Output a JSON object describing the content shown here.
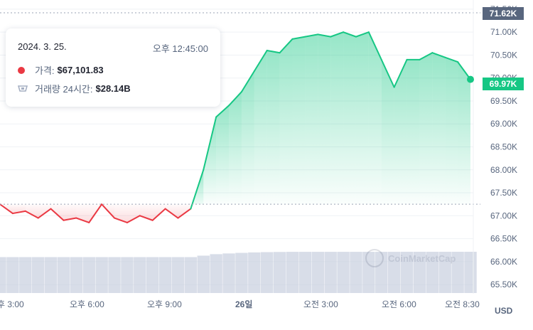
{
  "tooltip": {
    "date": "2024. 3. 25.",
    "time": "오후 12:45:00",
    "price_label": "가격:",
    "price_value": "$67,101.83",
    "volume_label": "거래량 24시간:",
    "volume_value": "$28.14B",
    "colors": {
      "price_dot": "#ea3943"
    },
    "icons": {
      "price": "red-dot-icon",
      "volume": "volume-icon"
    }
  },
  "watermark": {
    "text": "CoinMarketCap",
    "icon": "coinmarketcap-logo-icon"
  },
  "badges": {
    "high": {
      "label": "71.62K",
      "color": "#58667e"
    },
    "current": {
      "label": "69.97K",
      "color": "#16c784"
    }
  },
  "currency": "USD",
  "chart_data": {
    "type": "line",
    "series": [
      {
        "name": "가격",
        "x": [
          "3:00",
          "3:30",
          "4:00",
          "4:30",
          "5:00",
          "5:30",
          "6:00",
          "6:30",
          "7:00",
          "7:30",
          "8:00",
          "8:30",
          "9:00",
          "9:30",
          "10:00",
          "10:15",
          "10:30",
          "10:45",
          "11:00",
          "11:30",
          "12:00",
          "12:30",
          "1:00",
          "1:30",
          "2:00",
          "2:30",
          "3:00",
          "3:30",
          "4:00",
          "4:30",
          "5:00",
          "5:30",
          "6:00",
          "6:30",
          "7:00",
          "7:30",
          "8:00",
          "8:30"
        ],
        "values": [
          67250,
          67050,
          67100,
          66950,
          67150,
          66900,
          66950,
          66850,
          67250,
          66950,
          66850,
          67000,
          66900,
          67150,
          66950,
          67150,
          68000,
          69150,
          69400,
          69700,
          70150,
          70600,
          70550,
          70850,
          70900,
          70950,
          70900,
          71000,
          70900,
          71000,
          70400,
          69800,
          70400,
          70400,
          70550,
          70450,
          70350,
          69970
        ],
        "up_color": "#16c784",
        "down_color": "#ea3943"
      },
      {
        "name": "거래량 24시간",
        "values_billion": [
          24.5,
          24.5,
          24.5,
          24.5,
          24.5,
          24.5,
          24.5,
          24.5,
          24.5,
          24.5,
          24.5,
          24.5,
          24.5,
          24.5,
          24.5,
          24.5,
          25.5,
          26.5,
          27.0,
          27.4,
          27.7,
          27.9,
          28.0,
          28.1,
          28.1,
          28.1,
          28.1,
          28.1,
          28.1,
          28.1,
          28.1,
          28.1,
          28.14,
          28.14,
          28.14,
          28.14,
          28.14,
          28.14
        ],
        "color": "#c7cede"
      }
    ],
    "reference_value": 67250,
    "xlabel": "",
    "ylabel": "",
    "ylim": [
      65300,
      71700
    ],
    "x_ticks": [
      "후 3:00",
      "오후 6:00",
      "오후 9:00",
      "26일",
      "오전 3:00",
      "오전 6:00",
      "오전 8:30"
    ],
    "y_ticks": [
      "65.50K",
      "66.00K",
      "66.50K",
      "67.00K",
      "67.50K",
      "68.00K",
      "68.50K",
      "69.00K",
      "69.50K",
      "70.00K",
      "70.50K",
      "71.00K",
      "71.50K"
    ],
    "y_tick_values": [
      65500,
      66000,
      66500,
      67000,
      67500,
      68000,
      68500,
      69000,
      69500,
      70000,
      70500,
      71000,
      71500
    ],
    "grid": true,
    "legend": "none"
  }
}
